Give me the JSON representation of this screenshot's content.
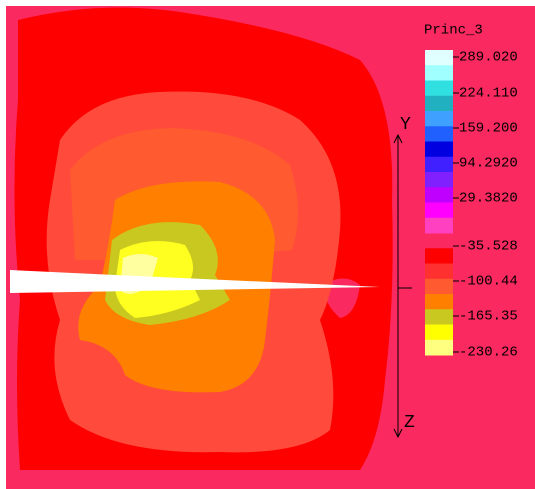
{
  "legend": {
    "title": "Princ_3",
    "labels": [
      "289.020",
      "224.110",
      "159.200",
      "94.2920",
      "29.3820",
      "-35.528",
      "-100.44",
      "-165.35",
      "-230.26"
    ]
  },
  "axes": {
    "vertical_top": "Y",
    "vertical_bottom": "Z"
  }
}
